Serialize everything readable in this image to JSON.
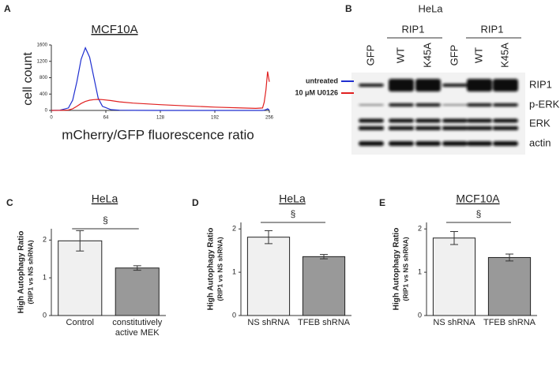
{
  "chart_data": [
    {
      "type": "line",
      "panel": "A",
      "title": "MCF10A",
      "xlabel": "mCherry/GFP fluorescence ratio",
      "ylabel": "cell count",
      "x": [
        0,
        10,
        20,
        25,
        30,
        35,
        40,
        45,
        50,
        55,
        60,
        70,
        80,
        96,
        128,
        160,
        192,
        224,
        240,
        248,
        250,
        252,
        254,
        256
      ],
      "series": [
        {
          "name": "untreated",
          "color": "#1f2fd0",
          "values": [
            0,
            5,
            60,
            250,
            700,
            1250,
            1530,
            1300,
            800,
            300,
            100,
            20,
            5,
            2,
            0,
            0,
            0,
            0,
            0,
            0,
            5,
            20,
            40,
            10
          ]
        },
        {
          "name": "10 μM U0126",
          "color": "#e02020",
          "values": [
            0,
            2,
            10,
            40,
            100,
            170,
            220,
            250,
            265,
            270,
            265,
            240,
            210,
            180,
            140,
            110,
            80,
            60,
            50,
            60,
            200,
            500,
            950,
            700
          ]
        }
      ],
      "xlim": [
        0,
        256
      ],
      "xticks": [
        0,
        64,
        128,
        192,
        256
      ],
      "ylim": [
        0,
        1600
      ],
      "yticks": [
        0,
        400,
        800,
        1200,
        1600
      ],
      "legend": "upper right"
    },
    {
      "type": "bar",
      "panel": "C",
      "title": "HeLa",
      "ylabel": [
        "High Autophagy Ratio",
        "(RIP1 vs NS shRNA)"
      ],
      "categories": [
        "Control",
        "constitutively active MEK"
      ],
      "values": [
        1.98,
        1.26
      ],
      "errors": [
        0.27,
        0.06
      ],
      "colors": [
        "#f0f0f0",
        "#999999"
      ],
      "ylim": [
        0,
        2.3
      ],
      "yticks": [
        0,
        1,
        2
      ],
      "annotation": "§"
    },
    {
      "type": "bar",
      "panel": "D",
      "title": "HeLa",
      "ylabel": [
        "High Autophagy Ratio",
        "(RIP1 vs NS shRNA)"
      ],
      "categories": [
        "NS shRNA",
        "TFEB shRNA"
      ],
      "values": [
        1.81,
        1.36
      ],
      "errors": [
        0.15,
        0.05
      ],
      "colors": [
        "#f0f0f0",
        "#999999"
      ],
      "ylim": [
        0,
        2.15
      ],
      "yticks": [
        0,
        1,
        2
      ],
      "annotation": "§"
    },
    {
      "type": "bar",
      "panel": "E",
      "title": "MCF10A",
      "ylabel": [
        "High Autophagy Ratio",
        "(RIP1 vs NS shRNA)"
      ],
      "categories": [
        "NS shRNA",
        "TFEB shRNA"
      ],
      "values": [
        1.79,
        1.34
      ],
      "errors": [
        0.15,
        0.08
      ],
      "colors": [
        "#f0f0f0",
        "#999999"
      ],
      "ylim": [
        0,
        2.15
      ],
      "yticks": [
        0,
        1,
        2
      ],
      "annotation": "§"
    }
  ],
  "blot": {
    "panel": "B",
    "group": "HeLa",
    "headers": [
      "RIP1",
      "RIP1"
    ],
    "lanes": [
      "GFP",
      "WT",
      "K45A",
      "GFP",
      "WT",
      "K45A"
    ],
    "rows": [
      "RIP1",
      "p-ERK",
      "ERK",
      "actin"
    ]
  }
}
